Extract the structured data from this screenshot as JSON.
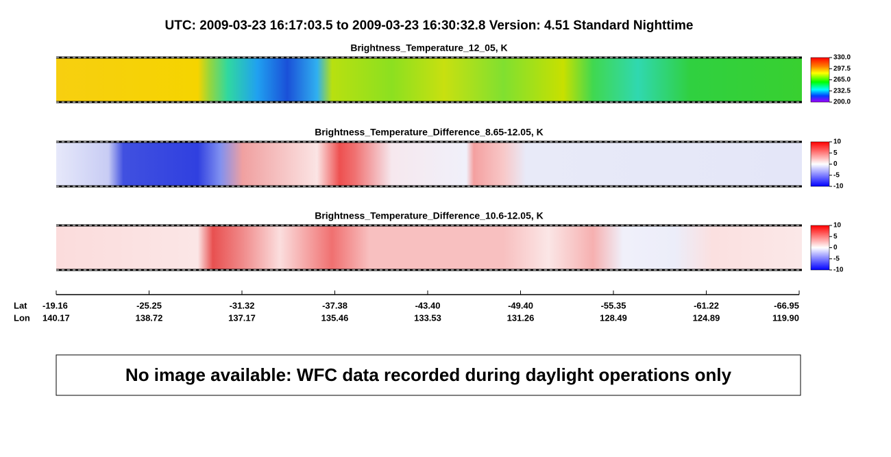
{
  "header": {
    "title": "UTC:  2009-03-23   16:17:03.5  to  2009-03-23   16:30:32.8    Version: 4.51  Standard Nighttime"
  },
  "panels": [
    {
      "title": "Brightness_Temperature_12_05, K",
      "colorbar": [
        "330.0",
        "297.5",
        "265.0",
        "232.5",
        "200.0"
      ]
    },
    {
      "title": "Brightness_Temperature_Difference_8.65-12.05, K",
      "colorbar": [
        "10",
        "5",
        "0",
        "-5",
        "-10"
      ]
    },
    {
      "title": "Brightness_Temperature_Difference_10.6-12.05, K",
      "colorbar": [
        "10",
        "5",
        "0",
        "-5",
        "-10"
      ]
    }
  ],
  "axis": {
    "lat_label": "Lat",
    "lon_label": "Lon",
    "lat": [
      "-19.16",
      "-25.25",
      "-31.32",
      "-37.38",
      "-43.40",
      "-49.40",
      "-55.35",
      "-61.22",
      "-66.95"
    ],
    "lon": [
      "140.17",
      "138.72",
      "137.17",
      "135.46",
      "133.53",
      "131.26",
      "128.49",
      "124.89",
      "119.90"
    ]
  },
  "notice": "No image available: WFC data recorded during daylight operations only"
}
